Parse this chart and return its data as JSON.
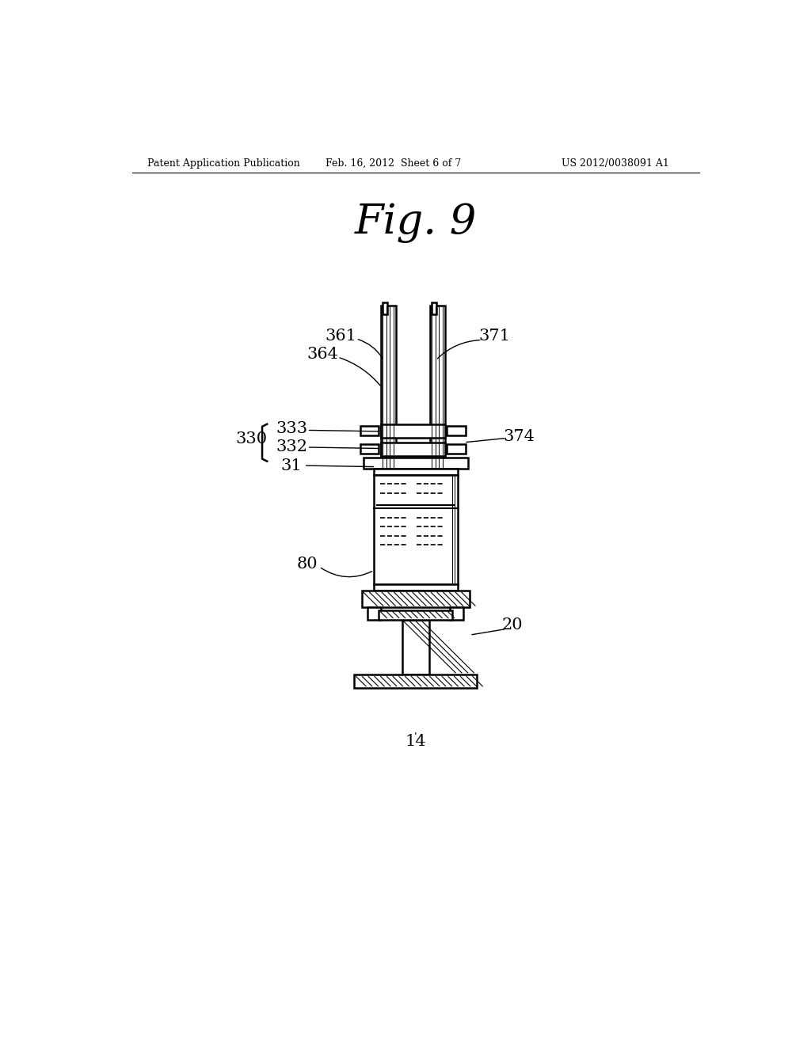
{
  "background_color": "#ffffff",
  "header_left": "Patent Application Publication",
  "header_center": "Feb. 16, 2012  Sheet 6 of 7",
  "header_right": "US 2012/0038091 A1",
  "fig_title": "Fig. 9"
}
